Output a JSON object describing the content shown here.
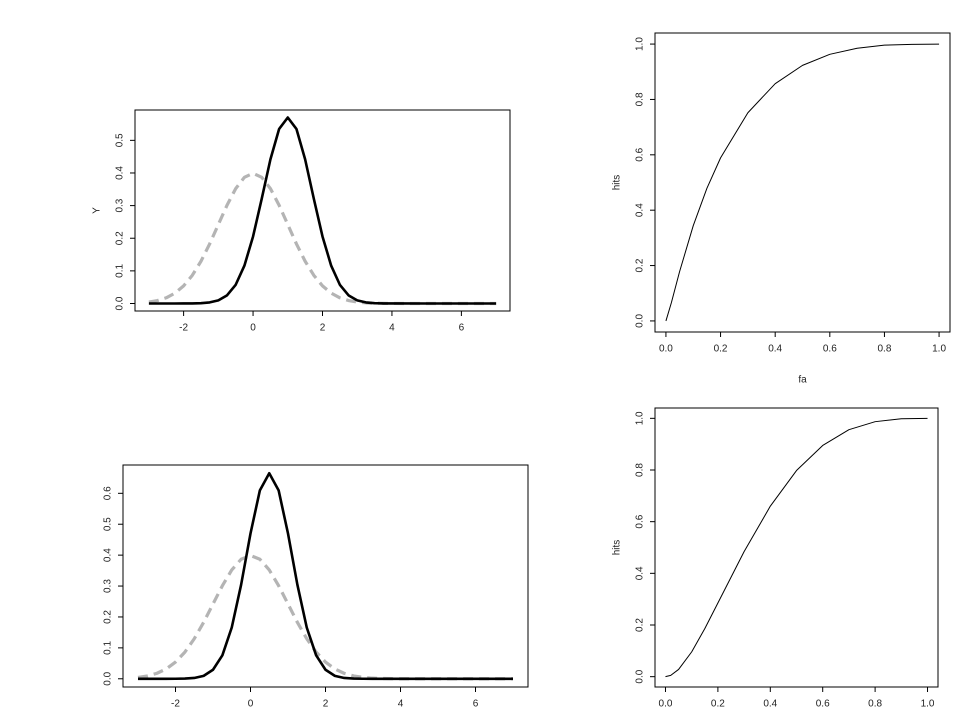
{
  "chart_data": [
    {
      "type": "line",
      "ylabel": "Y",
      "x": [
        -3,
        -2.75,
        -2.5,
        -2.25,
        -2,
        -1.75,
        -1.5,
        -1.25,
        -1,
        -0.75,
        -0.5,
        -0.25,
        0,
        0.25,
        0.5,
        0.75,
        1,
        1.25,
        1.5,
        1.75,
        2,
        2.25,
        2.5,
        2.75,
        3,
        3.25,
        3.5,
        3.75,
        4,
        5,
        6,
        7
      ],
      "series": [
        {
          "color": "#b4b4b4",
          "line_style": "dashed",
          "values": [
            0.0044,
            0.0091,
            0.0175,
            0.0317,
            0.054,
            0.0863,
            0.1295,
            0.1826,
            0.242,
            0.3011,
            0.3521,
            0.3867,
            0.3989,
            0.3867,
            0.3521,
            0.3011,
            0.242,
            0.1826,
            0.1295,
            0.0863,
            0.054,
            0.0317,
            0.0175,
            0.0091,
            0.0044,
            0.002,
            0.0009,
            0.0004,
            0.0001,
            0,
            0,
            0
          ]
        },
        {
          "color": "#000000",
          "line_style": "solid",
          "values": [
            0,
            0,
            0,
            0,
            0.0001,
            0.0003,
            0.001,
            0.0033,
            0.0096,
            0.025,
            0.0574,
            0.1158,
            0.2054,
            0.3211,
            0.4416,
            0.5348,
            0.57,
            0.5348,
            0.4416,
            0.3211,
            0.2054,
            0.1158,
            0.0574,
            0.025,
            0.0096,
            0.0033,
            0.001,
            0.0003,
            0.0001,
            0,
            0,
            0
          ]
        }
      ],
      "xlim": [
        -3.4,
        7.4
      ],
      "ylim": [
        -0.023,
        0.593
      ],
      "xticks": [
        -2,
        0,
        2,
        4,
        6
      ],
      "yticks": [
        {
          "value": 0,
          "label": "0.0"
        },
        0.1,
        0.2,
        0.3,
        0.4,
        0.5
      ]
    },
    {
      "type": "line",
      "xlabel": "fa",
      "ylabel": "hits",
      "x": [
        0,
        0.02,
        0.05,
        0.1,
        0.15,
        0.2,
        0.3,
        0.4,
        0.5,
        0.6,
        0.7,
        0.8,
        0.9,
        1
      ],
      "series": [
        {
          "color": "#000000",
          "line_style": "thin",
          "values": [
            0,
            0.066,
            0.178,
            0.344,
            0.479,
            0.589,
            0.752,
            0.857,
            0.923,
            0.963,
            0.985,
            0.996,
            0.999,
            1
          ]
        }
      ],
      "xlim": [
        -0.04,
        1.04
      ],
      "ylim": [
        -0.04,
        1.04
      ],
      "xticks": [
        {
          "value": 0,
          "label": "0.0"
        },
        0.2,
        0.4,
        0.6,
        0.8,
        {
          "value": 1,
          "label": "1.0"
        }
      ],
      "yticks": [
        {
          "value": 0,
          "label": "0.0"
        },
        0.2,
        0.4,
        0.6,
        0.8,
        {
          "value": 1,
          "label": "1.0"
        }
      ]
    },
    {
      "type": "line",
      "x": [
        -3,
        -2.75,
        -2.5,
        -2.25,
        -2,
        -1.75,
        -1.5,
        -1.25,
        -1,
        -0.75,
        -0.5,
        -0.25,
        0,
        0.25,
        0.5,
        0.75,
        1,
        1.25,
        1.5,
        1.75,
        2,
        2.25,
        2.5,
        2.75,
        3,
        3.25,
        3.5,
        3.75,
        4,
        5,
        6,
        7
      ],
      "series": [
        {
          "color": "#b4b4b4",
          "line_style": "dashed",
          "values": [
            0.0044,
            0.0091,
            0.0175,
            0.0317,
            0.054,
            0.0863,
            0.1295,
            0.1826,
            0.242,
            0.3011,
            0.3521,
            0.3867,
            0.3989,
            0.3867,
            0.3521,
            0.3011,
            0.242,
            0.1826,
            0.1295,
            0.0863,
            0.054,
            0.0317,
            0.0175,
            0.0091,
            0.0044,
            0.002,
            0.0009,
            0.0004,
            0.0001,
            0,
            0,
            0
          ]
        },
        {
          "color": "#000000",
          "line_style": "solid",
          "values": [
            0,
            0,
            0,
            0,
            0.0001,
            0.0006,
            0.0026,
            0.0094,
            0.0292,
            0.0759,
            0.1659,
            0.3044,
            0.4699,
            0.6097,
            0.665,
            0.6097,
            0.4699,
            0.3044,
            0.1659,
            0.0759,
            0.0292,
            0.0094,
            0.0026,
            0.0006,
            0.0001,
            0,
            0,
            0,
            0,
            0,
            0,
            0
          ]
        }
      ],
      "xlim": [
        -3.4,
        7.4
      ],
      "ylim": [
        -0.0266,
        0.6916
      ],
      "xticks": [
        -2,
        0,
        2,
        4,
        6
      ],
      "yticks": [
        {
          "value": 0,
          "label": "0.0"
        },
        0.1,
        0.2,
        0.3,
        0.4,
        0.5,
        0.6
      ]
    },
    {
      "type": "line",
      "ylabel": "hits",
      "x": [
        0,
        0.02,
        0.05,
        0.1,
        0.15,
        0.2,
        0.3,
        0.4,
        0.5,
        0.6,
        0.7,
        0.8,
        0.9,
        1
      ],
      "series": [
        {
          "color": "#000000",
          "line_style": "thin",
          "values": [
            0,
            0.005,
            0.028,
            0.096,
            0.186,
            0.285,
            0.484,
            0.66,
            0.798,
            0.895,
            0.956,
            0.987,
            0.9985,
            1
          ]
        }
      ],
      "xlim": [
        -0.04,
        1.04
      ],
      "ylim": [
        -0.04,
        1.04
      ],
      "xticks": [
        {
          "value": 0,
          "label": "0.0"
        },
        0.2,
        0.4,
        0.6,
        0.8,
        {
          "value": 1,
          "label": "1.0"
        }
      ],
      "yticks": [
        {
          "value": 0,
          "label": "0.0"
        },
        0.2,
        0.4,
        0.6,
        0.8,
        {
          "value": 1,
          "label": "1.0"
        }
      ]
    }
  ]
}
